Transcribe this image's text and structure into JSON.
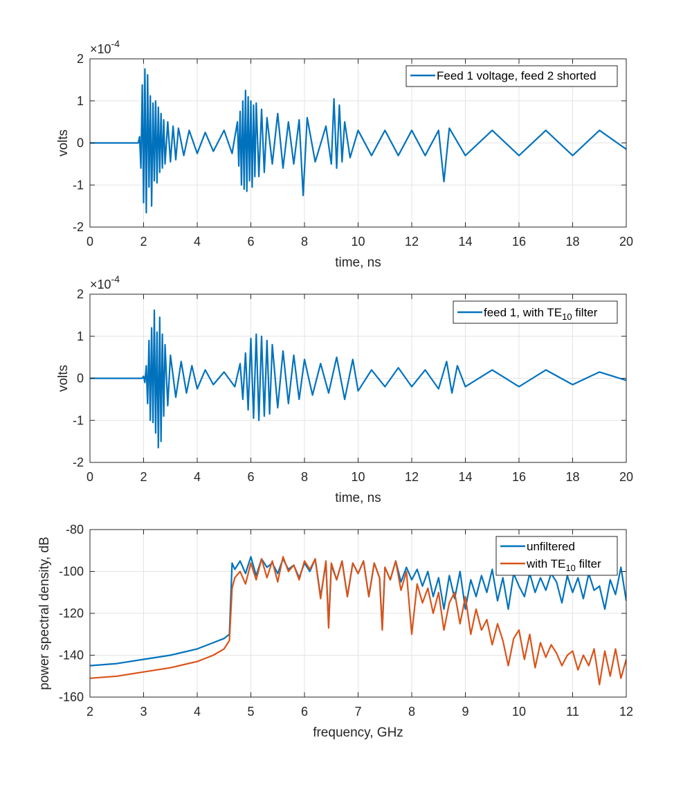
{
  "chart_data": [
    {
      "type": "line",
      "id": "p1",
      "title": "",
      "xlabel": "time, ns",
      "ylabel": "volts",
      "xlim": [
        0,
        20
      ],
      "ylim": [
        -2,
        2
      ],
      "xticks": [
        0,
        2,
        4,
        6,
        8,
        10,
        12,
        14,
        16,
        18,
        20
      ],
      "yticks": [
        -2,
        -1,
        0,
        1,
        2
      ],
      "xtick_labels": [
        "0",
        "2",
        "4",
        "6",
        "8",
        "10",
        "12",
        "14",
        "16",
        "18",
        "20"
      ],
      "ytick_labels": [
        "-2",
        "-1",
        "0",
        "1",
        "2"
      ],
      "y_multiplier": {
        "base": "×10",
        "exponent": "-4"
      },
      "grid": true,
      "legend_position": "top-right",
      "series": [
        {
          "name": "Feed 1 voltage, feed 2 shorted",
          "color": "#0072BD",
          "description": "transient: flat until ~1.8 ns, bursts at ~2, ~5.7, ~9.2 ns, then noisy decay",
          "x": [
            0,
            1.8,
            1.85,
            1.9,
            1.95,
            2.0,
            2.05,
            2.1,
            2.15,
            2.2,
            2.25,
            2.3,
            2.35,
            2.4,
            2.45,
            2.5,
            2.55,
            2.6,
            2.65,
            2.7,
            2.75,
            2.8,
            2.9,
            3.0,
            3.1,
            3.2,
            3.3,
            3.5,
            3.7,
            4.0,
            4.3,
            4.6,
            5.0,
            5.3,
            5.5,
            5.55,
            5.6,
            5.65,
            5.7,
            5.75,
            5.8,
            5.85,
            5.9,
            5.95,
            6.0,
            6.05,
            6.1,
            6.15,
            6.2,
            6.3,
            6.4,
            6.5,
            6.6,
            6.8,
            7.0,
            7.2,
            7.4,
            7.6,
            7.8,
            7.95,
            8.1,
            8.4,
            8.8,
            9.0,
            9.1,
            9.2,
            9.3,
            9.4,
            9.5,
            9.7,
            10.0,
            10.5,
            11.0,
            11.5,
            12.0,
            12.5,
            13.0,
            13.2,
            13.4,
            14.0,
            15.0,
            16.0,
            17.0,
            18.0,
            19.0,
            20.0
          ],
          "values": [
            0,
            0,
            0.15,
            -0.6,
            1.38,
            -1.42,
            1.76,
            -1.66,
            1.62,
            -1.05,
            1.12,
            -1.5,
            0.95,
            -0.9,
            1.0,
            -0.95,
            0.85,
            -0.7,
            0.7,
            -0.6,
            0.55,
            -0.5,
            0.5,
            -0.45,
            0.4,
            -0.4,
            0.35,
            -0.3,
            0.3,
            -0.25,
            0.25,
            -0.2,
            0.3,
            -0.25,
            0.5,
            -0.55,
            0.75,
            -1.0,
            1.0,
            -1.1,
            1.25,
            -1.15,
            1.1,
            -0.9,
            1.0,
            -1.05,
            0.9,
            -0.8,
            0.95,
            -0.8,
            0.8,
            -0.7,
            0.6,
            -0.5,
            0.7,
            -0.6,
            0.5,
            -0.5,
            0.55,
            -1.25,
            0.6,
            -0.45,
            0.4,
            -0.5,
            1.05,
            -0.6,
            0.9,
            -0.45,
            0.5,
            -0.35,
            0.3,
            -0.3,
            0.3,
            -0.3,
            0.3,
            -0.3,
            0.3,
            -0.92,
            0.35,
            -0.3,
            0.3,
            -0.3,
            0.3,
            -0.3,
            0.3,
            -0.15
          ]
        }
      ]
    },
    {
      "type": "line",
      "id": "p2",
      "title": "",
      "xlabel": "time, ns",
      "ylabel": "volts",
      "xlim": [
        0,
        20
      ],
      "ylim": [
        -2,
        2
      ],
      "xticks": [
        0,
        2,
        4,
        6,
        8,
        10,
        12,
        14,
        16,
        18,
        20
      ],
      "yticks": [
        -2,
        -1,
        0,
        1,
        2
      ],
      "xtick_labels": [
        "0",
        "2",
        "4",
        "6",
        "8",
        "10",
        "12",
        "14",
        "16",
        "18",
        "20"
      ],
      "ytick_labels": [
        "-2",
        "-1",
        "0",
        "1",
        "2"
      ],
      "y_multiplier": {
        "base": "×10",
        "exponent": "-4"
      },
      "grid": true,
      "legend_position": "top-right",
      "series": [
        {
          "name": "feed 1, with TE10 filter",
          "legend_main": "feed 1, with TE",
          "legend_sub": "10",
          "legend_tail": " filter",
          "color": "#0072BD",
          "description": "smoother filtered transient: burst ~2.5 ns, burst ~6 ns, small packets later",
          "x": [
            0,
            1.95,
            2.0,
            2.05,
            2.1,
            2.15,
            2.2,
            2.25,
            2.3,
            2.35,
            2.4,
            2.45,
            2.5,
            2.55,
            2.6,
            2.65,
            2.7,
            2.75,
            2.8,
            2.9,
            3.0,
            3.2,
            3.4,
            3.6,
            3.8,
            4.0,
            4.3,
            4.6,
            5.0,
            5.4,
            5.6,
            5.7,
            5.8,
            5.9,
            6.0,
            6.1,
            6.2,
            6.3,
            6.4,
            6.5,
            6.6,
            6.7,
            6.8,
            7.0,
            7.2,
            7.4,
            7.6,
            7.8,
            8.0,
            8.3,
            8.6,
            8.9,
            9.2,
            9.5,
            9.8,
            10.0,
            10.5,
            11.0,
            11.5,
            12.0,
            12.5,
            13.0,
            13.3,
            13.5,
            13.7,
            14.0,
            15.0,
            16.0,
            17.0,
            18.0,
            19.0,
            20.0
          ],
          "values": [
            0,
            0,
            0.05,
            -0.1,
            0.3,
            -0.6,
            0.9,
            -1.0,
            1.2,
            -1.05,
            1.62,
            -1.3,
            1.1,
            -1.65,
            1.45,
            -1.5,
            1.05,
            -0.9,
            0.8,
            -0.65,
            0.55,
            -0.45,
            0.4,
            -0.35,
            0.3,
            -0.25,
            0.2,
            -0.15,
            0.15,
            -0.2,
            0.35,
            -0.5,
            0.6,
            -0.75,
            0.95,
            -0.95,
            1.05,
            -1.0,
            1.0,
            -0.9,
            0.9,
            -0.85,
            0.8,
            -0.7,
            0.65,
            -0.6,
            0.55,
            -0.5,
            0.45,
            -0.4,
            0.35,
            -0.35,
            0.5,
            -0.5,
            0.45,
            -0.3,
            0.2,
            -0.2,
            0.25,
            -0.2,
            0.2,
            -0.25,
            0.4,
            -0.35,
            0.3,
            -0.2,
            0.2,
            -0.2,
            0.2,
            -0.15,
            0.15,
            -0.05
          ]
        }
      ]
    },
    {
      "type": "line",
      "id": "p3",
      "title": "",
      "xlabel": "frequency, GHz",
      "ylabel": "power spectral density, dB",
      "xlim": [
        2,
        12
      ],
      "ylim": [
        -160,
        -80
      ],
      "xticks": [
        2,
        3,
        4,
        5,
        6,
        7,
        8,
        9,
        10,
        11,
        12
      ],
      "yticks": [
        -160,
        -140,
        -120,
        -100,
        -80
      ],
      "xtick_labels": [
        "2",
        "3",
        "4",
        "5",
        "6",
        "7",
        "8",
        "9",
        "10",
        "11",
        "12"
      ],
      "ytick_labels": [
        "-160",
        "-140",
        "-120",
        "-100",
        "-80"
      ],
      "grid": true,
      "legend_position": "top-right",
      "series": [
        {
          "name": "unfiltered",
          "color": "#0072BD",
          "x": [
            2.0,
            2.5,
            3.0,
            3.5,
            4.0,
            4.3,
            4.5,
            4.55,
            4.6,
            4.65,
            4.7,
            4.8,
            4.9,
            5.0,
            5.1,
            5.2,
            5.3,
            5.4,
            5.5,
            5.6,
            5.7,
            5.8,
            5.9,
            6.0,
            6.1,
            6.2,
            6.3,
            6.4,
            6.45,
            6.5,
            6.6,
            6.7,
            6.8,
            6.9,
            7.0,
            7.1,
            7.2,
            7.3,
            7.4,
            7.45,
            7.5,
            7.6,
            7.7,
            7.8,
            7.9,
            8.0,
            8.1,
            8.2,
            8.3,
            8.4,
            8.5,
            8.6,
            8.7,
            8.8,
            8.9,
            9.0,
            9.1,
            9.2,
            9.3,
            9.4,
            9.5,
            9.6,
            9.7,
            9.8,
            9.9,
            10.0,
            10.1,
            10.2,
            10.3,
            10.4,
            10.5,
            10.6,
            10.7,
            10.8,
            10.9,
            11.0,
            11.1,
            11.2,
            11.3,
            11.4,
            11.5,
            11.6,
            11.7,
            11.8,
            11.9,
            12.0
          ],
          "values": [
            -145,
            -144,
            -142,
            -140,
            -137,
            -134,
            -132,
            -131,
            -130,
            -96,
            -99,
            -95,
            -101,
            -93,
            -102,
            -94,
            -98,
            -96,
            -101,
            -94,
            -99,
            -97,
            -103,
            -96,
            -100,
            -94,
            -112,
            -96,
            -126,
            -97,
            -104,
            -95,
            -112,
            -96,
            -101,
            -95,
            -112,
            -96,
            -103,
            -127,
            -98,
            -104,
            -95,
            -105,
            -98,
            -104,
            -99,
            -107,
            -100,
            -112,
            -103,
            -118,
            -102,
            -113,
            -100,
            -118,
            -104,
            -112,
            -102,
            -110,
            -99,
            -114,
            -103,
            -118,
            -101,
            -107,
            -112,
            -101,
            -110,
            -103,
            -109,
            -101,
            -105,
            -115,
            -102,
            -110,
            -103,
            -113,
            -101,
            -109,
            -107,
            -118,
            -104,
            -111,
            -98,
            -114
          ]
        },
        {
          "name": "with TE10 filter",
          "legend_main": "with TE",
          "legend_sub": "10",
          "legend_tail": " filter",
          "color": "#D95319",
          "x": [
            2.0,
            2.5,
            3.0,
            3.5,
            4.0,
            4.3,
            4.5,
            4.55,
            4.6,
            4.65,
            4.7,
            4.8,
            4.9,
            5.0,
            5.1,
            5.2,
            5.3,
            5.4,
            5.5,
            5.6,
            5.7,
            5.8,
            5.9,
            6.0,
            6.1,
            6.2,
            6.3,
            6.4,
            6.45,
            6.5,
            6.6,
            6.7,
            6.8,
            6.9,
            7.0,
            7.1,
            7.2,
            7.3,
            7.4,
            7.45,
            7.5,
            7.6,
            7.7,
            7.8,
            7.9,
            8.0,
            8.1,
            8.2,
            8.3,
            8.4,
            8.5,
            8.6,
            8.7,
            8.8,
            8.9,
            9.0,
            9.1,
            9.2,
            9.3,
            9.4,
            9.5,
            9.6,
            9.7,
            9.8,
            9.9,
            10.0,
            10.1,
            10.2,
            10.3,
            10.4,
            10.5,
            10.6,
            10.7,
            10.8,
            10.9,
            11.0,
            11.1,
            11.2,
            11.3,
            11.4,
            11.5,
            11.6,
            11.7,
            11.8,
            11.9,
            12.0
          ],
          "values": [
            -151,
            -150,
            -148,
            -146,
            -143,
            -140,
            -137,
            -135,
            -133,
            -108,
            -103,
            -100,
            -106,
            -96,
            -104,
            -94,
            -103,
            -95,
            -105,
            -93,
            -100,
            -97,
            -104,
            -95,
            -99,
            -94,
            -113,
            -95,
            -127,
            -96,
            -104,
            -95,
            -112,
            -96,
            -101,
            -95,
            -112,
            -96,
            -103,
            -128,
            -98,
            -104,
            -95,
            -109,
            -100,
            -130,
            -106,
            -115,
            -108,
            -120,
            -110,
            -128,
            -115,
            -110,
            -125,
            -112,
            -130,
            -118,
            -128,
            -123,
            -135,
            -125,
            -133,
            -145,
            -132,
            -128,
            -142,
            -130,
            -146,
            -134,
            -141,
            -135,
            -139,
            -145,
            -140,
            -138,
            -147,
            -140,
            -145,
            -137,
            -154,
            -138,
            -150,
            -137,
            -151,
            -142
          ]
        }
      ]
    }
  ]
}
